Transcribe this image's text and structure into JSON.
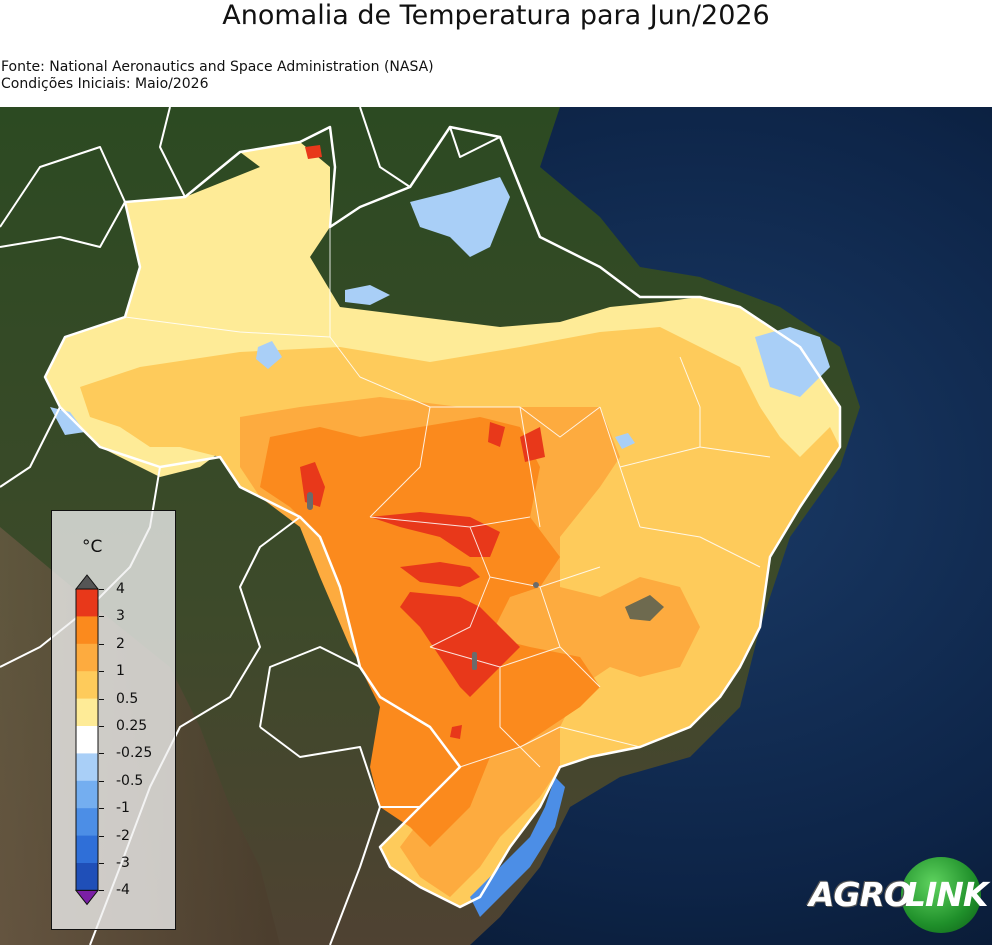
{
  "title": "Anomalia de Temperatura para Jun/2026",
  "source_line": "Fonte: National Aeronautics and Space Administration (NASA)",
  "conditions_line": "Condições Iniciais: Maio/2026",
  "legend": {
    "unit": "°C",
    "ticks": [
      "4",
      "3",
      "2",
      "1",
      "0.5",
      "0.25",
      "-0.25",
      "-0.5",
      "-1",
      "-2",
      "-3",
      "-4"
    ],
    "bins": [
      {
        "color": "#e8381a"
      },
      {
        "color": "#fb8a1d"
      },
      {
        "color": "#fdab3f"
      },
      {
        "color": "#fecb5b"
      },
      {
        "color": "#feeb97"
      },
      {
        "color": "#ffffff"
      },
      {
        "color": "#a9cff7"
      },
      {
        "color": "#74aef0"
      },
      {
        "color": "#4c8ee6"
      },
      {
        "color": "#2f6fd8"
      },
      {
        "color": "#1f4fb8"
      }
    ],
    "top_extend_color": "#555555",
    "bottom_extend_color": "#7a1fa5"
  },
  "logo": {
    "part1": "AGRO",
    "part2": "LINK"
  },
  "colors": {
    "ocean": "#0c1c38",
    "land_forest": "#2f4d24",
    "land_arid": "#5b4a37",
    "borders": "#ffffff"
  }
}
